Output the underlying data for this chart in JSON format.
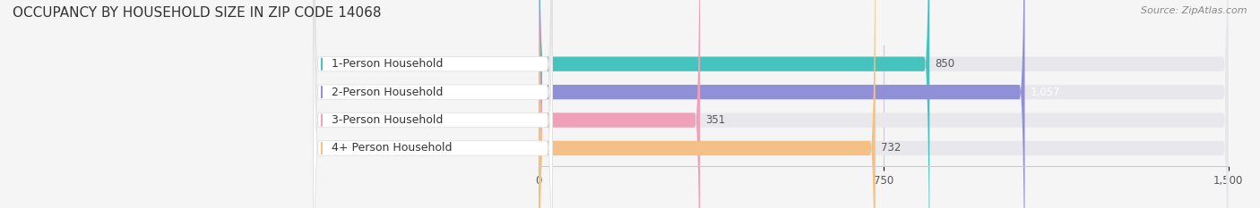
{
  "title": "OCCUPANCY BY HOUSEHOLD SIZE IN ZIP CODE 14068",
  "source": "Source: ZipAtlas.com",
  "categories": [
    "1-Person Household",
    "2-Person Household",
    "3-Person Household",
    "4+ Person Household"
  ],
  "values": [
    850,
    1057,
    351,
    732
  ],
  "bar_colors": [
    "#45c4bf",
    "#9090d8",
    "#f0a0b8",
    "#f5c085"
  ],
  "value_label_colors": [
    "#555555",
    "#ffffff",
    "#555555",
    "#555555"
  ],
  "xlim_data": [
    0,
    1500
  ],
  "xticks": [
    0,
    750,
    1500
  ],
  "bg_color": "#f5f5f5",
  "bar_bg_color": "#e8e8ec",
  "bar_height": 0.52,
  "figsize": [
    14.06,
    2.33
  ],
  "dpi": 100,
  "title_fontsize": 11,
  "source_fontsize": 8,
  "label_fontsize": 9,
  "value_fontsize": 8.5
}
